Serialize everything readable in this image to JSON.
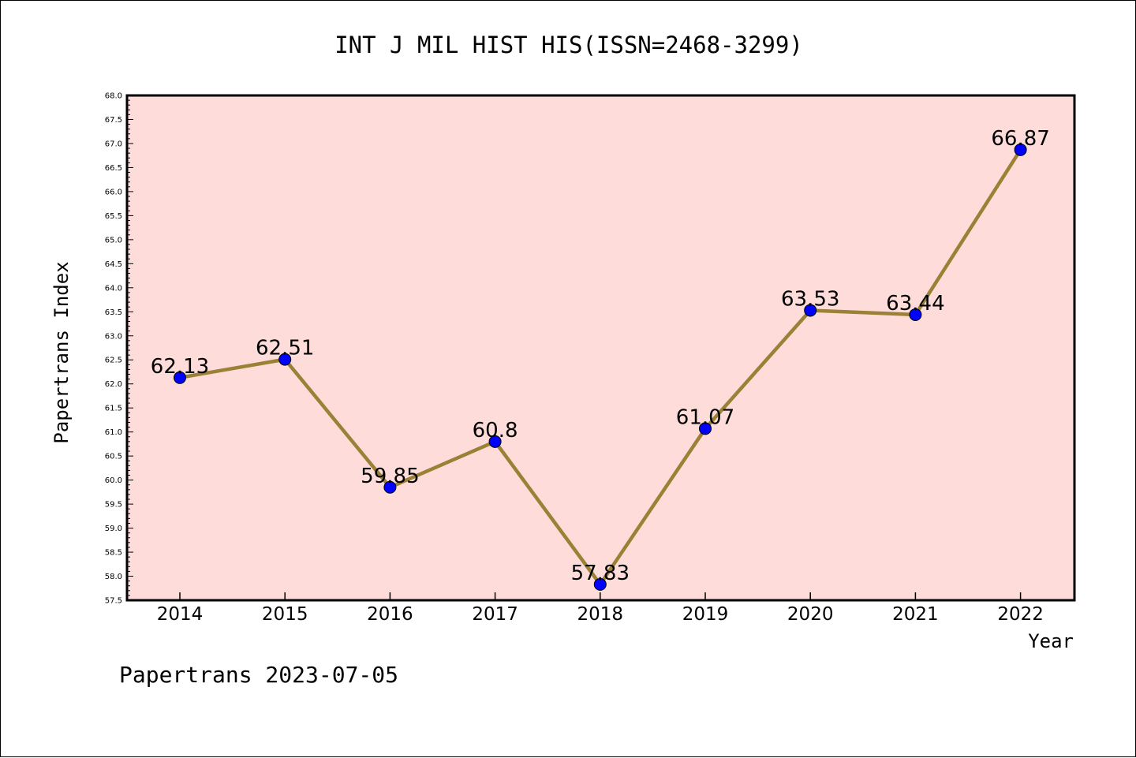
{
  "chart_data": {
    "type": "line",
    "title": "INT J MIL HIST HIS(ISSN=2468-3299)",
    "xlabel": "Year",
    "ylabel": "Papertrans Index",
    "categories": [
      "2014",
      "2015",
      "2016",
      "2017",
      "2018",
      "2019",
      "2020",
      "2021",
      "2022"
    ],
    "values": [
      62.13,
      62.51,
      59.85,
      60.8,
      57.83,
      61.07,
      63.53,
      63.44,
      66.87
    ],
    "data_labels": [
      "62.13",
      "62.51",
      "59.85",
      "60.8",
      "57.83",
      "61.07",
      "63.53",
      "63.44",
      "66.87"
    ],
    "ylim": [
      57.5,
      68.0
    ],
    "yticks": [
      "57.5",
      "58.0",
      "58.5",
      "59.0",
      "59.5",
      "60.0",
      "60.5",
      "61.0",
      "61.5",
      "62.0",
      "62.5",
      "63.0",
      "63.5",
      "64.0",
      "64.5",
      "65.0",
      "65.5",
      "66.0",
      "66.5",
      "67.0",
      "67.5",
      "68.0"
    ],
    "grid": false,
    "legend": "none",
    "colors": {
      "plot_background": "#fddcda",
      "line": "#9a8136",
      "marker": "#0000ff"
    }
  },
  "footer": "Papertrans 2023-07-05"
}
